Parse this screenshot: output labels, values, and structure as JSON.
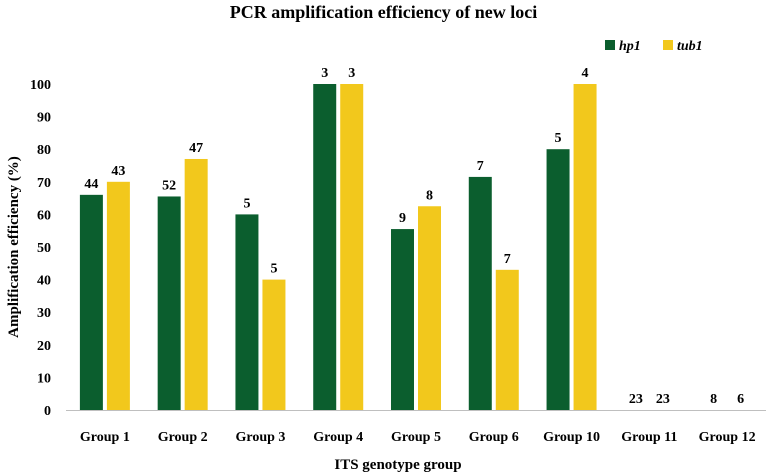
{
  "chart_data": {
    "type": "bar",
    "title": "PCR amplification efficiency of new loci",
    "xlabel": "ITS genotype group",
    "ylabel": "Amplification efficiency (%)",
    "ylim": [
      0,
      100
    ],
    "yticks": [
      0,
      10,
      20,
      30,
      40,
      50,
      60,
      70,
      80,
      90,
      100
    ],
    "legend_position": "top-right",
    "categories": [
      "Group 1",
      "Group 2",
      "Group 3",
      "Group 4",
      "Group 5",
      "Group 6",
      "Group 10",
      "Group 11",
      "Group 12"
    ],
    "series": [
      {
        "name": "hp1",
        "color": "#0b5e2e",
        "values": [
          66,
          65.5,
          60,
          100,
          55.5,
          71.5,
          80,
          0,
          0
        ],
        "labels": [
          "44",
          "52",
          "5",
          "3",
          "9",
          "7",
          "5",
          "23",
          "8"
        ]
      },
      {
        "name": "tub1",
        "color": "#f2c81c",
        "values": [
          70,
          77,
          40,
          100,
          62.5,
          43,
          100,
          0,
          0
        ],
        "labels": [
          "43",
          "47",
          "5",
          "3",
          "8",
          "7",
          "4",
          "23",
          "6"
        ]
      }
    ]
  }
}
